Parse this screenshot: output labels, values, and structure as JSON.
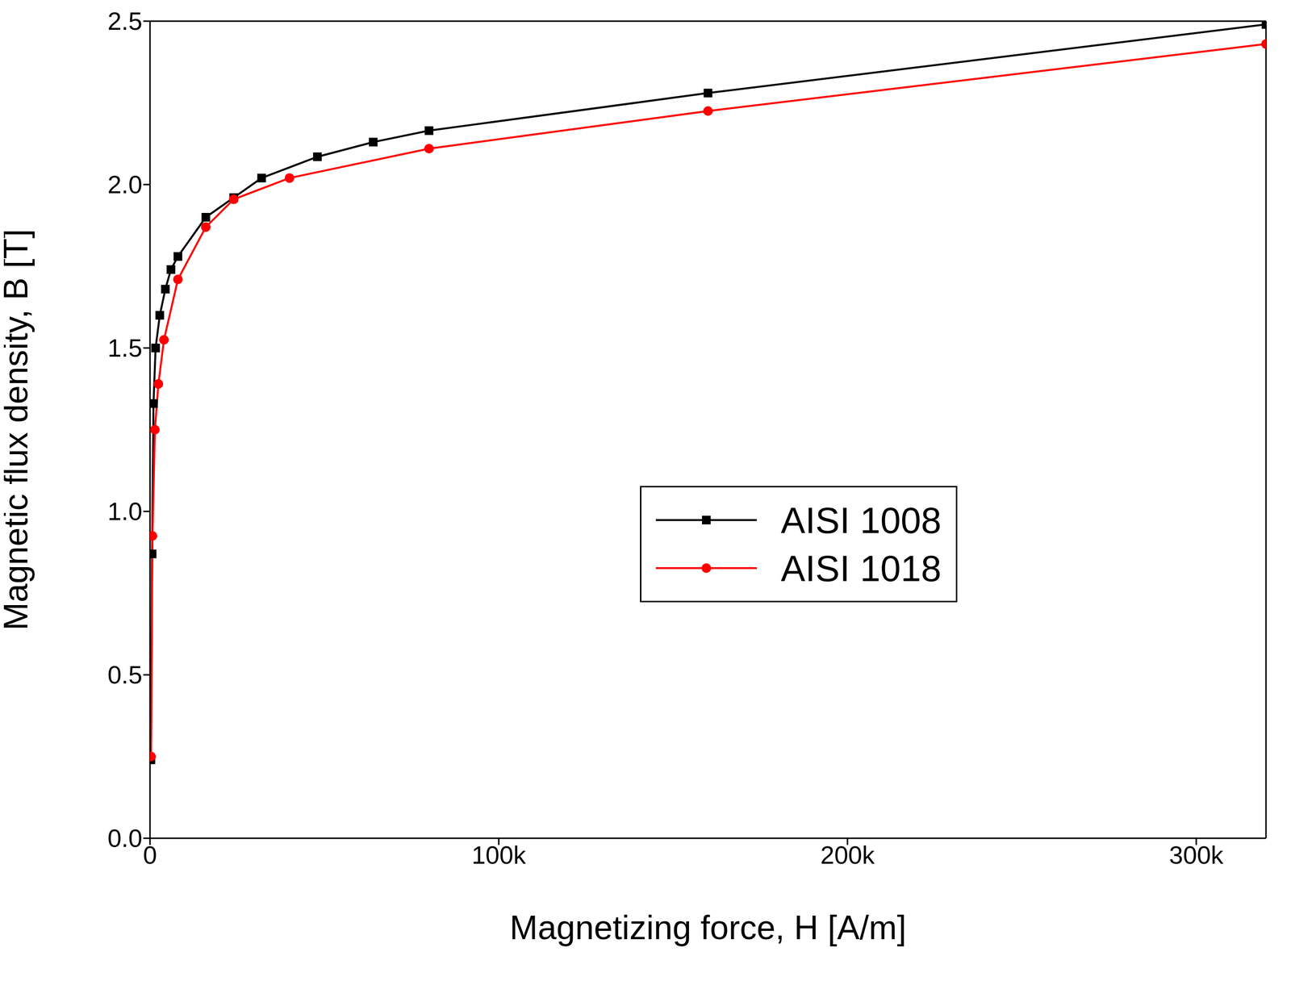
{
  "chart_data": {
    "type": "line",
    "x_label": "Magnetizing force, H [A/m]",
    "y_label": "Magnetic flux density, B [T]",
    "xlim": [
      0,
      320000
    ],
    "xticks": [
      {
        "value": 0,
        "label": "0"
      },
      {
        "value": 100000,
        "label": "100k"
      },
      {
        "value": 200000,
        "label": "200k"
      },
      {
        "value": 300000,
        "label": "300k"
      }
    ],
    "ylim": [
      0,
      2.5
    ],
    "yticks": [
      {
        "value": 0,
        "label": "0.0"
      },
      {
        "value": 0.5,
        "label": "0.5"
      },
      {
        "value": 1,
        "label": "1.0"
      },
      {
        "value": 1.5,
        "label": "1.5"
      },
      {
        "value": 2,
        "label": "2.0"
      },
      {
        "value": 2.5,
        "label": "2.5"
      }
    ],
    "grid": false,
    "legend": "right",
    "series": [
      {
        "name": "AISI 1008",
        "color": "#000000",
        "marker": "square",
        "x": [
          250,
          600,
          1000,
          1600,
          2800,
          4400,
          6000,
          8000,
          16000,
          24000,
          32000,
          48000,
          64000,
          80000,
          160000,
          320000
        ],
        "values": [
          0.24,
          0.87,
          1.33,
          1.5,
          1.6,
          1.68,
          1.74,
          1.78,
          1.9,
          1.96,
          2.02,
          2.085,
          2.13,
          2.165,
          2.28,
          2.49
        ]
      },
      {
        "name": "AISI 1018",
        "color": "#ff0000",
        "marker": "circle",
        "x": [
          300,
          700,
          1400,
          2400,
          4000,
          8000,
          16000,
          24000,
          40000,
          80000,
          160000,
          320000
        ],
        "values": [
          0.25,
          0.925,
          1.25,
          1.39,
          1.525,
          1.71,
          1.87,
          1.955,
          2.02,
          2.11,
          2.225,
          2.43
        ]
      }
    ]
  }
}
